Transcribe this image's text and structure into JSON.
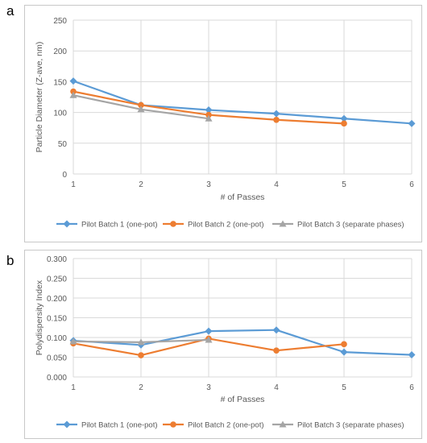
{
  "panels": [
    {
      "letter": "a"
    },
    {
      "letter": "b"
    }
  ],
  "chart_data": [
    {
      "type": "line",
      "xlabel": "# of Passes",
      "ylabel": "Particle Diameter (Z-ave, nm)",
      "x_ticks": [
        "1",
        "2",
        "3",
        "4",
        "5",
        "6"
      ],
      "y_ticks": [
        "0",
        "50",
        "100",
        "150",
        "200",
        "250"
      ],
      "xlim": [
        1,
        6
      ],
      "ylim": [
        0,
        250
      ],
      "grid": true,
      "legend_position": "bottom",
      "series": [
        {
          "name": "Pilot Batch 1 (one-pot)",
          "color": "#5b9bd5",
          "marker": "diamond",
          "x": [
            1,
            2,
            3,
            4,
            5,
            6
          ],
          "y": [
            151,
            112,
            104,
            98,
            90,
            82
          ]
        },
        {
          "name": "Pilot Batch 2 (one-pot)",
          "color": "#ed7d31",
          "marker": "circle",
          "x": [
            1,
            2,
            3,
            4,
            5
          ],
          "y": [
            134,
            112,
            96,
            88,
            82
          ]
        },
        {
          "name": "Pilot Batch 3 (separate phases)",
          "color": "#a5a5a5",
          "marker": "triangle",
          "x": [
            1,
            2,
            3
          ],
          "y": [
            128,
            105,
            90
          ]
        }
      ]
    },
    {
      "type": "line",
      "xlabel": "# of Passes",
      "ylabel": "Polydispersity Index",
      "x_ticks": [
        "1",
        "2",
        "3",
        "4",
        "5",
        "6"
      ],
      "y_ticks": [
        "0.000",
        "0.050",
        "0.100",
        "0.150",
        "0.200",
        "0.250",
        "0.300"
      ],
      "xlim": [
        1,
        6
      ],
      "ylim": [
        0,
        0.3
      ],
      "grid": true,
      "legend_position": "bottom",
      "series": [
        {
          "name": "Pilot Batch 1 (one-pot)",
          "color": "#5b9bd5",
          "marker": "diamond",
          "x": [
            1,
            2,
            3,
            4,
            5,
            6
          ],
          "y": [
            0.092,
            0.081,
            0.116,
            0.119,
            0.063,
            0.056
          ]
        },
        {
          "name": "Pilot Batch 2 (one-pot)",
          "color": "#ed7d31",
          "marker": "circle",
          "x": [
            1,
            2,
            3,
            4,
            5
          ],
          "y": [
            0.085,
            0.055,
            0.097,
            0.067,
            0.083
          ]
        },
        {
          "name": "Pilot Batch 3 (separate phases)",
          "color": "#a5a5a5",
          "marker": "triangle",
          "x": [
            1,
            2,
            3
          ],
          "y": [
            0.09,
            0.088,
            0.094
          ]
        }
      ]
    }
  ]
}
